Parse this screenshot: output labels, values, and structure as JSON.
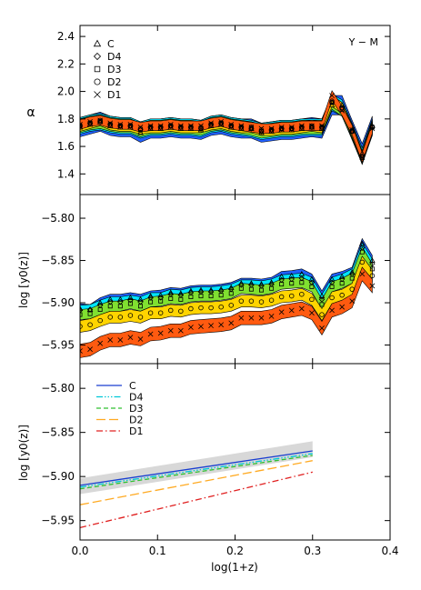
{
  "chart_data": [
    {
      "type": "area",
      "panel": "top",
      "ylabel": "α",
      "annotation": "Y − M",
      "xlim": [
        0.0,
        0.4
      ],
      "ylim": [
        1.25,
        2.48
      ],
      "yticks": [
        "1.4",
        "1.6",
        "1.8",
        "2.0",
        "2.2",
        "2.4"
      ],
      "x": [
        0.0,
        0.013,
        0.026,
        0.039,
        0.052,
        0.065,
        0.078,
        0.091,
        0.104,
        0.117,
        0.13,
        0.143,
        0.156,
        0.169,
        0.182,
        0.195,
        0.208,
        0.221,
        0.234,
        0.247,
        0.26,
        0.273,
        0.286,
        0.299,
        0.312,
        0.325,
        0.338,
        0.351,
        0.364,
        0.377
      ],
      "legend": [
        {
          "marker": "triangle",
          "label": "C"
        },
        {
          "marker": "diamond",
          "label": "D4"
        },
        {
          "marker": "square",
          "label": "D3"
        },
        {
          "marker": "circle",
          "label": "D2"
        },
        {
          "marker": "cross",
          "label": "D1"
        }
      ],
      "bands": [
        {
          "color": "#2060ff",
          "offset": 0.07
        },
        {
          "color": "#00e5ff",
          "offset": 0.06
        },
        {
          "color": "#80e030",
          "offset": 0.05
        },
        {
          "color": "#ffd400",
          "offset": 0.04
        },
        {
          "color": "#ff5a10",
          "offset": 0.035
        }
      ],
      "series": [
        {
          "name": "C",
          "values": [
            1.74,
            1.76,
            1.78,
            1.75,
            1.74,
            1.74,
            1.7,
            1.73,
            1.73,
            1.74,
            1.73,
            1.73,
            1.72,
            1.75,
            1.76,
            1.74,
            1.73,
            1.73,
            1.7,
            1.71,
            1.72,
            1.72,
            1.73,
            1.74,
            1.73,
            1.9,
            1.9,
            1.72,
            1.55,
            1.75
          ]
        },
        {
          "name": "D4",
          "values": [
            1.75,
            1.77,
            1.78,
            1.76,
            1.75,
            1.75,
            1.72,
            1.74,
            1.74,
            1.75,
            1.74,
            1.74,
            1.73,
            1.76,
            1.77,
            1.75,
            1.74,
            1.73,
            1.71,
            1.72,
            1.73,
            1.73,
            1.74,
            1.74,
            1.74,
            1.92,
            1.88,
            1.71,
            1.53,
            1.74
          ]
        },
        {
          "name": "D3",
          "values": [
            1.75,
            1.77,
            1.78,
            1.76,
            1.75,
            1.75,
            1.72,
            1.74,
            1.74,
            1.75,
            1.74,
            1.74,
            1.73,
            1.76,
            1.77,
            1.75,
            1.74,
            1.73,
            1.71,
            1.72,
            1.73,
            1.73,
            1.74,
            1.74,
            1.74,
            1.92,
            1.87,
            1.71,
            1.52,
            1.74
          ]
        },
        {
          "name": "D2",
          "values": [
            1.75,
            1.77,
            1.79,
            1.76,
            1.75,
            1.75,
            1.73,
            1.74,
            1.74,
            1.75,
            1.74,
            1.74,
            1.74,
            1.76,
            1.77,
            1.75,
            1.74,
            1.74,
            1.72,
            1.72,
            1.73,
            1.73,
            1.74,
            1.75,
            1.74,
            1.93,
            1.88,
            1.71,
            1.52,
            1.74
          ]
        },
        {
          "name": "D1",
          "values": [
            1.76,
            1.78,
            1.79,
            1.77,
            1.76,
            1.76,
            1.74,
            1.75,
            1.75,
            1.76,
            1.75,
            1.75,
            1.75,
            1.77,
            1.78,
            1.76,
            1.75,
            1.74,
            1.73,
            1.73,
            1.74,
            1.74,
            1.75,
            1.75,
            1.75,
            1.97,
            1.86,
            1.72,
            1.52,
            1.73
          ]
        }
      ]
    },
    {
      "type": "area",
      "panel": "middle",
      "ylabel": "log [y0(z)]",
      "xlim": [
        0.0,
        0.4
      ],
      "ylim": [
        -5.972,
        -5.772
      ],
      "yticks": [
        "−5.95",
        "−5.90",
        "−5.85",
        "−5.80"
      ],
      "x": [
        0.0,
        0.013,
        0.026,
        0.039,
        0.052,
        0.065,
        0.078,
        0.091,
        0.104,
        0.117,
        0.13,
        0.143,
        0.156,
        0.169,
        0.182,
        0.195,
        0.208,
        0.221,
        0.234,
        0.247,
        0.26,
        0.273,
        0.286,
        0.299,
        0.312,
        0.325,
        0.338,
        0.351,
        0.364,
        0.377
      ],
      "bands": [
        {
          "color": "#2060ff",
          "halfwidth": 0.006
        },
        {
          "color": "#00e5ff",
          "halfwidth": 0.006
        },
        {
          "color": "#80e030",
          "halfwidth": 0.006
        },
        {
          "color": "#ffd400",
          "halfwidth": 0.007
        },
        {
          "color": "#ff5a10",
          "halfwidth": 0.008
        }
      ],
      "series": [
        {
          "name": "C",
          "values": [
            -5.907,
            -5.908,
            -5.9,
            -5.896,
            -5.896,
            -5.894,
            -5.896,
            -5.892,
            -5.891,
            -5.888,
            -5.889,
            -5.886,
            -5.885,
            -5.885,
            -5.884,
            -5.882,
            -5.877,
            -5.877,
            -5.878,
            -5.876,
            -5.869,
            -5.868,
            -5.866,
            -5.872,
            -5.892,
            -5.872,
            -5.869,
            -5.864,
            -5.83,
            -5.85
          ]
        },
        {
          "name": "D4",
          "values": [
            -5.909,
            -5.908,
            -5.903,
            -5.899,
            -5.899,
            -5.897,
            -5.899,
            -5.894,
            -5.894,
            -5.89,
            -5.891,
            -5.888,
            -5.887,
            -5.887,
            -5.886,
            -5.884,
            -5.879,
            -5.879,
            -5.88,
            -5.878,
            -5.873,
            -5.872,
            -5.871,
            -5.876,
            -5.896,
            -5.876,
            -5.872,
            -5.866,
            -5.835,
            -5.854
          ]
        },
        {
          "name": "D3",
          "values": [
            -5.914,
            -5.913,
            -5.908,
            -5.904,
            -5.904,
            -5.901,
            -5.904,
            -5.899,
            -5.898,
            -5.895,
            -5.896,
            -5.893,
            -5.892,
            -5.892,
            -5.891,
            -5.889,
            -5.883,
            -5.884,
            -5.885,
            -5.883,
            -5.878,
            -5.877,
            -5.876,
            -5.881,
            -5.902,
            -5.881,
            -5.877,
            -5.871,
            -5.84,
            -5.86
          ]
        },
        {
          "name": "D2",
          "values": [
            -5.928,
            -5.926,
            -5.921,
            -5.917,
            -5.917,
            -5.915,
            -5.917,
            -5.912,
            -5.912,
            -5.909,
            -5.91,
            -5.907,
            -5.906,
            -5.906,
            -5.905,
            -5.903,
            -5.898,
            -5.898,
            -5.899,
            -5.897,
            -5.893,
            -5.892,
            -5.89,
            -5.896,
            -5.914,
            -5.894,
            -5.891,
            -5.884,
            -5.852,
            -5.868
          ]
        },
        {
          "name": "D1",
          "values": [
            -5.957,
            -5.955,
            -5.948,
            -5.944,
            -5.944,
            -5.941,
            -5.943,
            -5.937,
            -5.936,
            -5.933,
            -5.933,
            -5.929,
            -5.928,
            -5.927,
            -5.926,
            -5.924,
            -5.918,
            -5.918,
            -5.918,
            -5.916,
            -5.911,
            -5.909,
            -5.907,
            -5.912,
            -5.93,
            -5.909,
            -5.905,
            -5.898,
            -5.866,
            -5.88
          ]
        }
      ]
    },
    {
      "type": "line",
      "panel": "bottom",
      "ylabel": "log [y0(z)]",
      "xlabel": "log(1+z)",
      "xlim": [
        0.0,
        0.4
      ],
      "ylim": [
        -5.972,
        -5.772
      ],
      "xticks": [
        "0.0",
        "0.1",
        "0.2",
        "0.3",
        "0.4"
      ],
      "yticks": [
        "−5.95",
        "−5.90",
        "−5.85",
        "−5.80"
      ],
      "shaded_band": {
        "color": "#d8d8d8",
        "x": [
          0.0,
          0.3
        ],
        "lower": [
          -5.92,
          -5.878
        ],
        "upper": [
          -5.902,
          -5.86
        ]
      },
      "series": [
        {
          "name": "C",
          "color": "#1a3fd0",
          "dash": "solid",
          "x": [
            0.0,
            0.3
          ],
          "values": [
            -5.91,
            -5.871
          ]
        },
        {
          "name": "D4",
          "color": "#00c8d8",
          "dash": "dashdotdot",
          "x": [
            0.0,
            0.3
          ],
          "values": [
            -5.912,
            -5.874
          ]
        },
        {
          "name": "D3",
          "color": "#30c030",
          "dash": "dash",
          "x": [
            0.0,
            0.3
          ],
          "values": [
            -5.914,
            -5.876
          ]
        },
        {
          "name": "D2",
          "color": "#ffaa22",
          "dash": "longdash",
          "x": [
            0.0,
            0.3
          ],
          "values": [
            -5.932,
            -5.882
          ]
        },
        {
          "name": "D1",
          "color": "#e02020",
          "dash": "dashdot",
          "x": [
            0.0,
            0.3
          ],
          "values": [
            -5.958,
            -5.895
          ]
        }
      ]
    }
  ]
}
